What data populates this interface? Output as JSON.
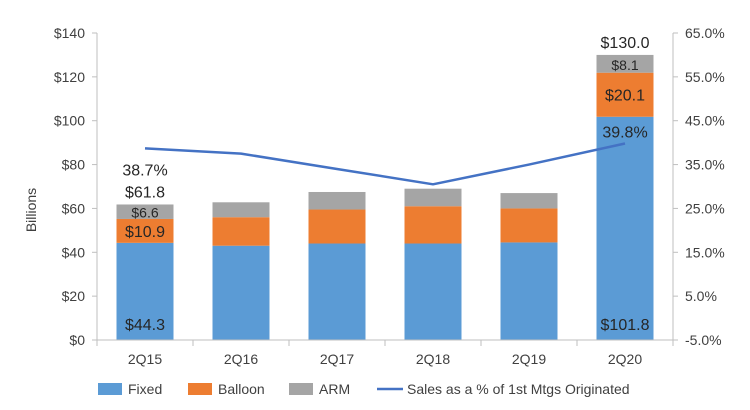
{
  "chart_data": {
    "type": "bar",
    "stacked": true,
    "categories": [
      "2Q15",
      "2Q16",
      "2Q17",
      "2Q18",
      "2Q19",
      "2Q20"
    ],
    "series": [
      {
        "name": "Fixed",
        "color": "#5b9bd5",
        "values": [
          44.3,
          43.0,
          44.0,
          44.0,
          44.5,
          101.8
        ]
      },
      {
        "name": "Balloon",
        "color": "#ed7d31",
        "values": [
          10.9,
          13.0,
          15.5,
          17.0,
          15.5,
          20.1
        ]
      },
      {
        "name": "ARM",
        "color": "#a5a5a5",
        "values": [
          6.6,
          6.8,
          8.0,
          8.0,
          7.0,
          8.1
        ]
      }
    ],
    "line_series": {
      "name": "Sales as a % of 1st Mtgs Originated",
      "color": "#4472c4",
      "axis": "secondary",
      "values": [
        38.7,
        37.5,
        34.0,
        30.5,
        35.0,
        39.8
      ]
    },
    "ylabel": "Billions",
    "ylim": [
      0,
      140
    ],
    "y_ticks": [
      "$0",
      "$20",
      "$40",
      "$60",
      "$80",
      "$100",
      "$120",
      "$140"
    ],
    "y_tick_values": [
      0,
      20,
      40,
      60,
      80,
      100,
      120,
      140
    ],
    "y2lim": [
      -5,
      65
    ],
    "y2_ticks": [
      "-5.0%",
      "5.0%",
      "15.0%",
      "25.0%",
      "35.0%",
      "45.0%",
      "55.0%",
      "65.0%"
    ],
    "y2_tick_values": [
      -5,
      5,
      15,
      25,
      35,
      45,
      55,
      65
    ],
    "data_labels": [
      {
        "category": "2Q15",
        "series": "Fixed",
        "text": "$44.3"
      },
      {
        "category": "2Q15",
        "series": "Balloon",
        "text": "$10.9"
      },
      {
        "category": "2Q15",
        "series": "ARM",
        "text": "$6.6"
      },
      {
        "category": "2Q15",
        "series": "Total",
        "text": "$61.8"
      },
      {
        "category": "2Q15",
        "series": "Line",
        "text": "38.7%"
      },
      {
        "category": "2Q20",
        "series": "Fixed",
        "text": "$101.8"
      },
      {
        "category": "2Q20",
        "series": "Balloon",
        "text": "$20.1"
      },
      {
        "category": "2Q20",
        "series": "ARM",
        "text": "$8.1"
      },
      {
        "category": "2Q20",
        "series": "Total",
        "text": "$130.0"
      },
      {
        "category": "2Q20",
        "series": "Line",
        "text": "39.8%"
      }
    ],
    "legend": {
      "position": "bottom",
      "entries": [
        "Fixed",
        "Balloon",
        "ARM",
        "Sales as a % of 1st Mtgs Originated"
      ]
    },
    "grid": false
  }
}
